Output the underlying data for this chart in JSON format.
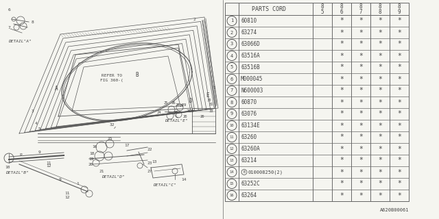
{
  "bg_color": "#f5f5f0",
  "text_color": "#444444",
  "line_color": "#666666",
  "diagram_color": "#555555",
  "col_header": "PARTS CORD",
  "year_cols": [
    "85",
    "86",
    "87",
    "88",
    "89"
  ],
  "rows": [
    {
      "num": "1",
      "code": "60810"
    },
    {
      "num": "2",
      "code": "63274"
    },
    {
      "num": "3",
      "code": "63066D"
    },
    {
      "num": "4",
      "code": "63516A"
    },
    {
      "num": "5",
      "code": "63516B"
    },
    {
      "num": "6",
      "code": "M000045"
    },
    {
      "num": "7",
      "code": "N600003"
    },
    {
      "num": "8",
      "code": "60870"
    },
    {
      "num": "9",
      "code": "63076"
    },
    {
      "num": "10",
      "code": "63134E"
    },
    {
      "num": "11",
      "code": "63260"
    },
    {
      "num": "12",
      "code": "63260A"
    },
    {
      "num": "13",
      "code": "63214"
    },
    {
      "num": "14",
      "code": "B010008250(2)",
      "special": true
    },
    {
      "num": "15",
      "code": "63252C"
    },
    {
      "num": "16",
      "code": "63264"
    }
  ],
  "watermark": "A620B00061"
}
